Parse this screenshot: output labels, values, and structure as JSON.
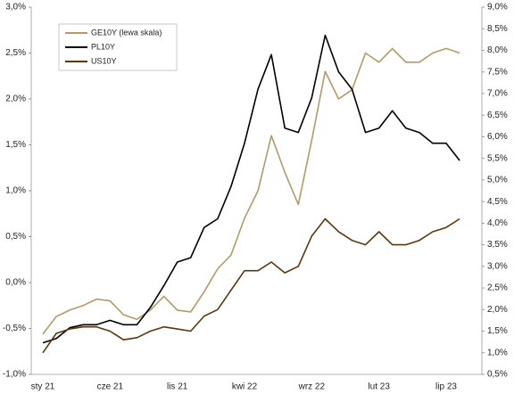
{
  "chart_data": {
    "type": "line",
    "categories": [
      "sty 21",
      null,
      null,
      null,
      null,
      "cze 21",
      null,
      null,
      null,
      null,
      "lis 21",
      null,
      null,
      null,
      null,
      "kwi 22",
      null,
      null,
      null,
      null,
      "wrz 22",
      null,
      null,
      null,
      null,
      "lut 23",
      null,
      null,
      null,
      null,
      "lip 23",
      null
    ],
    "series": [
      {
        "name": "GE10Y (lewa skala)",
        "color": "#b59a66",
        "values": [
          -0.56,
          -0.37,
          -0.3,
          -0.25,
          -0.18,
          -0.2,
          -0.35,
          -0.4,
          -0.3,
          -0.15,
          -0.3,
          -0.32,
          -0.1,
          0.15,
          0.3,
          0.7,
          1.0,
          1.6,
          1.2,
          0.85,
          1.55,
          2.3,
          2.0,
          2.1,
          2.5,
          2.4,
          2.55,
          2.4,
          2.4,
          2.5,
          2.55,
          2.5
        ]
      },
      {
        "name": "PL10Y",
        "color": "#000000",
        "axis": "y2",
        "values": [
          1.23,
          1.33,
          1.58,
          1.65,
          1.65,
          1.75,
          1.65,
          1.65,
          2.05,
          2.55,
          3.1,
          3.2,
          3.9,
          4.1,
          4.85,
          5.85,
          7.1,
          7.9,
          6.2,
          6.1,
          6.9,
          8.35,
          7.5,
          7.1,
          6.1,
          6.2,
          6.6,
          6.2,
          6.1,
          5.85,
          5.85,
          5.45
        ]
      },
      {
        "name": "US10Y",
        "color": "#5c370c",
        "axis": "y2",
        "values": [
          1.0,
          1.45,
          1.55,
          1.6,
          1.6,
          1.5,
          1.3,
          1.35,
          1.5,
          1.6,
          1.55,
          1.5,
          1.85,
          2.0,
          2.45,
          2.9,
          2.9,
          3.1,
          2.85,
          3.0,
          3.7,
          4.1,
          3.8,
          3.6,
          3.5,
          3.8,
          3.5,
          3.5,
          3.6,
          3.8,
          3.9,
          4.1
        ]
      }
    ],
    "ylim": [
      -1.0,
      3.0
    ],
    "yticks": [
      {
        "value": -1.0,
        "label": "-1,0%"
      },
      {
        "value": -0.5,
        "label": "-0,5%"
      },
      {
        "value": 0.0,
        "label": "0,0%"
      },
      {
        "value": 0.5,
        "label": "0,5%"
      },
      {
        "value": 1.0,
        "label": "1,0%"
      },
      {
        "value": 1.5,
        "label": "1,5%"
      },
      {
        "value": 2.0,
        "label": "2,0%"
      },
      {
        "value": 2.5,
        "label": "2,5%"
      },
      {
        "value": 3.0,
        "label": "3,0%"
      }
    ],
    "y2lim": [
      0.5,
      9.0
    ],
    "y2ticks": [
      {
        "value": 0.5,
        "label": "0,5%"
      },
      {
        "value": 1.0,
        "label": "1,0%"
      },
      {
        "value": 1.5,
        "label": "1,5%"
      },
      {
        "value": 2.0,
        "label": "2,0%"
      },
      {
        "value": 2.5,
        "label": "2,5%"
      },
      {
        "value": 3.0,
        "label": "3,0%"
      },
      {
        "value": 3.5,
        "label": "3,5%"
      },
      {
        "value": 4.0,
        "label": "4,0%"
      },
      {
        "value": 4.5,
        "label": "4,5%"
      },
      {
        "value": 5.0,
        "label": "5,0%"
      },
      {
        "value": 5.5,
        "label": "5,5%"
      },
      {
        "value": 6.0,
        "label": "6,0%"
      },
      {
        "value": 6.5,
        "label": "6,5%"
      },
      {
        "value": 7.0,
        "label": "7,0%"
      },
      {
        "value": 7.5,
        "label": "7,5%"
      },
      {
        "value": 8.0,
        "label": "8,0%"
      },
      {
        "value": 8.5,
        "label": "8,5%"
      },
      {
        "value": 9.0,
        "label": "9,0%"
      }
    ],
    "legend": "upper left",
    "grid": false
  }
}
